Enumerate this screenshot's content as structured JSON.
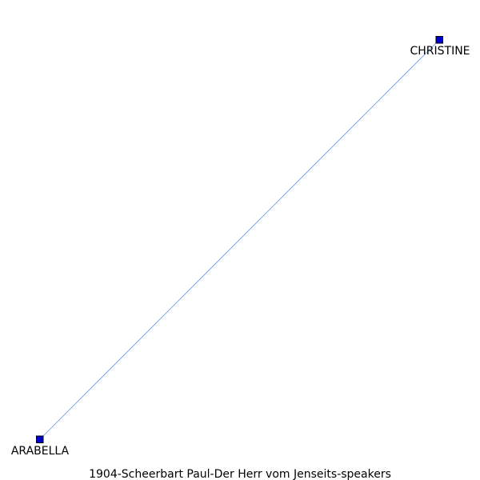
{
  "graph": {
    "title": "1904-Scheerbart_Paul-Der_Herr_vom_Jenseits-speakers",
    "edge_color": "#6495ED",
    "node_fill": "#0000CD",
    "node_stroke": "#000000",
    "nodes": [
      {
        "id": "christine",
        "label": "CHRISTINE"
      },
      {
        "id": "arabella",
        "label": "ARABELLA"
      }
    ],
    "edges": [
      {
        "source": "christine",
        "target": "arabella"
      }
    ]
  }
}
